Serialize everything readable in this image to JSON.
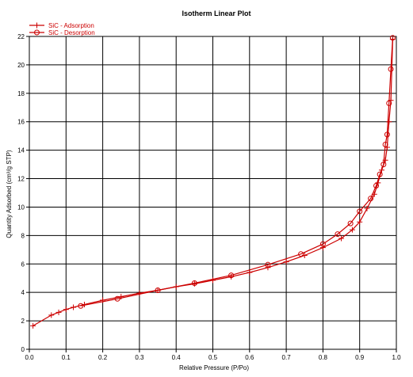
{
  "chart_data": {
    "type": "line",
    "title": "Isotherm Linear Plot",
    "xlabel": "Relative Pressure (P/Po)",
    "ylabel": "Quantity Adsorbed (cm³/g STP)",
    "xlim": [
      0,
      1.0
    ],
    "ylim": [
      0,
      22
    ],
    "x_ticks": [
      "0.0",
      "0.1",
      "0.2",
      "0.3",
      "0.4",
      "0.5",
      "0.6",
      "0.7",
      "0.8",
      "0.9",
      "1.0"
    ],
    "y_ticks": [
      "0",
      "2",
      "4",
      "6",
      "8",
      "10",
      "12",
      "14",
      "16",
      "18",
      "20",
      "22"
    ],
    "grid": true,
    "legend_position": "top-left",
    "series": [
      {
        "name": "SiC - Adsorption",
        "marker": "plus",
        "color": "#cc0000",
        "x": [
          0.01,
          0.06,
          0.08,
          0.1,
          0.12,
          0.15,
          0.2,
          0.25,
          0.3,
          0.35,
          0.4,
          0.45,
          0.5,
          0.55,
          0.6,
          0.65,
          0.7,
          0.75,
          0.8,
          0.85,
          0.88,
          0.9,
          0.92,
          0.94,
          0.95,
          0.96,
          0.97,
          0.975,
          0.98,
          0.985,
          0.99
        ],
        "y": [
          1.65,
          2.4,
          2.6,
          2.8,
          2.95,
          3.15,
          3.45,
          3.7,
          3.95,
          4.15,
          4.4,
          4.6,
          4.85,
          5.1,
          5.4,
          5.75,
          6.15,
          6.6,
          7.15,
          7.8,
          8.4,
          8.95,
          9.9,
          10.9,
          11.7,
          12.6,
          13.3,
          14.2,
          16.0,
          17.5,
          21.8
        ]
      },
      {
        "name": "SiC - Desorption",
        "marker": "circle",
        "color": "#cc0000",
        "x": [
          0.99,
          0.985,
          0.98,
          0.975,
          0.97,
          0.965,
          0.955,
          0.945,
          0.93,
          0.9,
          0.875,
          0.84,
          0.8,
          0.74,
          0.65,
          0.55,
          0.45,
          0.35,
          0.24,
          0.14
        ],
        "y": [
          21.9,
          19.7,
          17.3,
          15.1,
          14.4,
          13.0,
          12.3,
          11.5,
          10.6,
          9.7,
          8.85,
          8.1,
          7.4,
          6.7,
          5.95,
          5.2,
          4.65,
          4.15,
          3.55,
          3.05
        ]
      }
    ]
  }
}
